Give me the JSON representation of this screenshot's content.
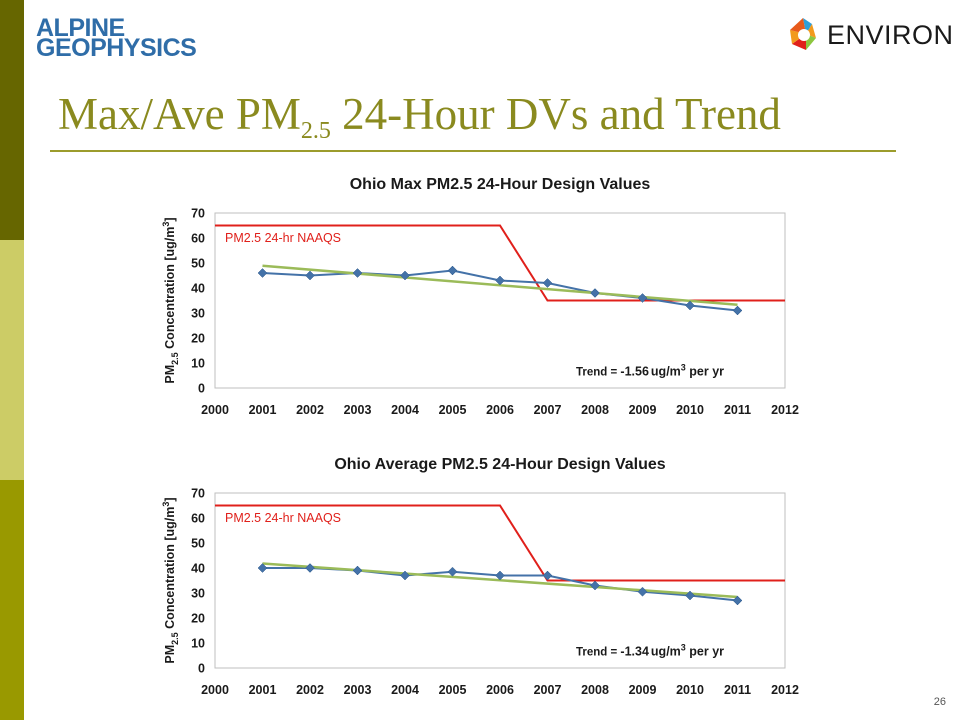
{
  "colors": {
    "sidebar": [
      "#666600",
      "#CCCC66",
      "#999900"
    ],
    "title": "#8a8a1f",
    "rule": "#9c9c2c",
    "data_series": "#4472a8",
    "trend_series": "#9bbb59",
    "naaqs_series": "#e0201b"
  },
  "logos": {
    "alpine_line1": "ALPINE",
    "alpine_line2": "GEOPHYSICS",
    "environ": "ENVIRON"
  },
  "slide": {
    "title_prefix": "Max/Ave PM",
    "title_sub": "2.5",
    "title_suffix": " 24-Hour DVs and Trend",
    "page_number": "26"
  },
  "chart_data": [
    {
      "type": "line",
      "title": "Ohio Max PM2.5 24-Hour Design Values",
      "ylabel_prefix": "PM",
      "ylabel_sub": "2.5",
      "ylabel_main": " Concentration [ug/m",
      "ylabel_sup": "3",
      "ylabel_end": "]",
      "ylim": [
        0,
        70
      ],
      "yticks": [
        0,
        10,
        20,
        30,
        40,
        50,
        60,
        70
      ],
      "xlim": [
        2000,
        2012
      ],
      "xticks": [
        2000,
        2001,
        2002,
        2003,
        2004,
        2005,
        2006,
        2007,
        2008,
        2009,
        2010,
        2011,
        2012
      ],
      "grid": false,
      "series": [
        {
          "role": "data",
          "marker": "diamond",
          "x": [
            2001,
            2002,
            2003,
            2004,
            2005,
            2006,
            2007,
            2008,
            2009,
            2010,
            2011
          ],
          "y": [
            46,
            45,
            46,
            45,
            47,
            43,
            42,
            38,
            36,
            33,
            31
          ]
        },
        {
          "role": "trend",
          "x": [
            2001,
            2011
          ],
          "y": [
            48.9,
            33.3
          ]
        },
        {
          "role": "naaqs",
          "x": [
            2000,
            2006,
            2007,
            2012
          ],
          "y": [
            65,
            65,
            35,
            35
          ]
        }
      ],
      "annotations": {
        "naaqs_label": "PM2.5 24-hr NAAQS",
        "trend_prefix": "Trend = ",
        "trend_value": "-1.56",
        "trend_unit": "ug/m",
        "trend_unit_sup": "3",
        "trend_suffix": " per yr"
      }
    },
    {
      "type": "line",
      "title": "Ohio Average PM2.5 24-Hour Design Values",
      "ylabel_prefix": "PM",
      "ylabel_sub": "2.5",
      "ylabel_main": " Concentration [ug/m",
      "ylabel_sup": "3",
      "ylabel_end": "]",
      "ylim": [
        0,
        70
      ],
      "yticks": [
        0,
        10,
        20,
        30,
        40,
        50,
        60,
        70
      ],
      "xlim": [
        2000,
        2012
      ],
      "xticks": [
        2000,
        2001,
        2002,
        2003,
        2004,
        2005,
        2006,
        2007,
        2008,
        2009,
        2010,
        2011,
        2012
      ],
      "grid": false,
      "series": [
        {
          "role": "data",
          "marker": "diamond",
          "x": [
            2001,
            2002,
            2003,
            2004,
            2005,
            2006,
            2007,
            2008,
            2009,
            2010,
            2011
          ],
          "y": [
            40,
            40,
            39,
            37,
            38.5,
            37,
            37,
            33,
            30.5,
            29,
            27
          ]
        },
        {
          "role": "trend",
          "x": [
            2001,
            2011
          ],
          "y": [
            41.8,
            28.4
          ]
        },
        {
          "role": "naaqs",
          "x": [
            2000,
            2006,
            2007,
            2012
          ],
          "y": [
            65,
            65,
            35,
            35
          ]
        }
      ],
      "annotations": {
        "naaqs_label": "PM2.5 24-hr NAAQS",
        "trend_prefix": "Trend = ",
        "trend_value": "-1.34",
        "trend_unit": "ug/m",
        "trend_unit_sup": "3",
        "trend_suffix": " per yr"
      }
    }
  ]
}
